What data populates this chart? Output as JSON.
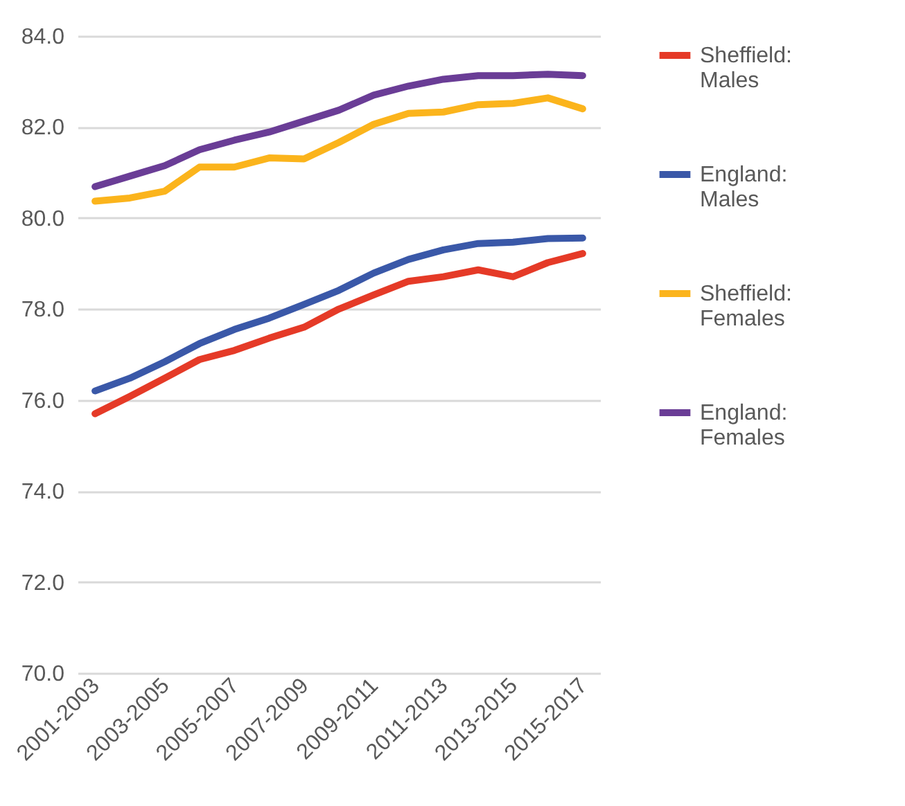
{
  "chart_data": {
    "type": "line",
    "categories": [
      "2001-2003",
      null,
      "2003-2005",
      null,
      "2005-2007",
      null,
      "2007-2009",
      null,
      "2009-2011",
      null,
      "2011-2013",
      null,
      "2013-2015",
      null,
      "2015-2017"
    ],
    "series": [
      {
        "name": "Sheffield: Males",
        "color": "#e53a27",
        "values": [
          75.7,
          76.08,
          76.48,
          76.89,
          77.09,
          77.36,
          77.6,
          78.0,
          78.31,
          78.61,
          78.71,
          78.86,
          78.71,
          79.02,
          79.22
        ]
      },
      {
        "name": "England: Males",
        "color": "#3a58a8",
        "values": [
          76.2,
          76.48,
          76.84,
          77.24,
          77.55,
          77.8,
          78.1,
          78.41,
          78.79,
          79.09,
          79.3,
          79.44,
          79.47,
          79.55,
          79.56
        ]
      },
      {
        "name": "Sheffield: Females",
        "color": "#fbb41c",
        "values": [
          80.37,
          80.44,
          80.59,
          81.12,
          81.12,
          81.32,
          81.3,
          81.66,
          82.06,
          82.3,
          82.33,
          82.49,
          82.52,
          82.64,
          82.4
        ]
      },
      {
        "name": "England: Females",
        "color": "#6a3d96",
        "values": [
          80.69,
          80.92,
          81.15,
          81.5,
          81.71,
          81.89,
          82.13,
          82.37,
          82.7,
          82.9,
          83.05,
          83.13,
          83.13,
          83.16,
          83.13
        ]
      }
    ],
    "ylim": [
      70,
      84
    ],
    "yticks": [
      {
        "value": 70,
        "label": "70.0"
      },
      {
        "value": 72,
        "label": "72.0"
      },
      {
        "value": 74,
        "label": "74.0"
      },
      {
        "value": 76,
        "label": "76.0"
      },
      {
        "value": 78,
        "label": "78.0"
      },
      {
        "value": 80,
        "label": "80.0"
      },
      {
        "value": 82,
        "label": "82.0"
      },
      {
        "value": 84,
        "label": "84.0"
      }
    ],
    "grid": "y",
    "legend": "right",
    "marker": "none",
    "line_style": "solid"
  }
}
